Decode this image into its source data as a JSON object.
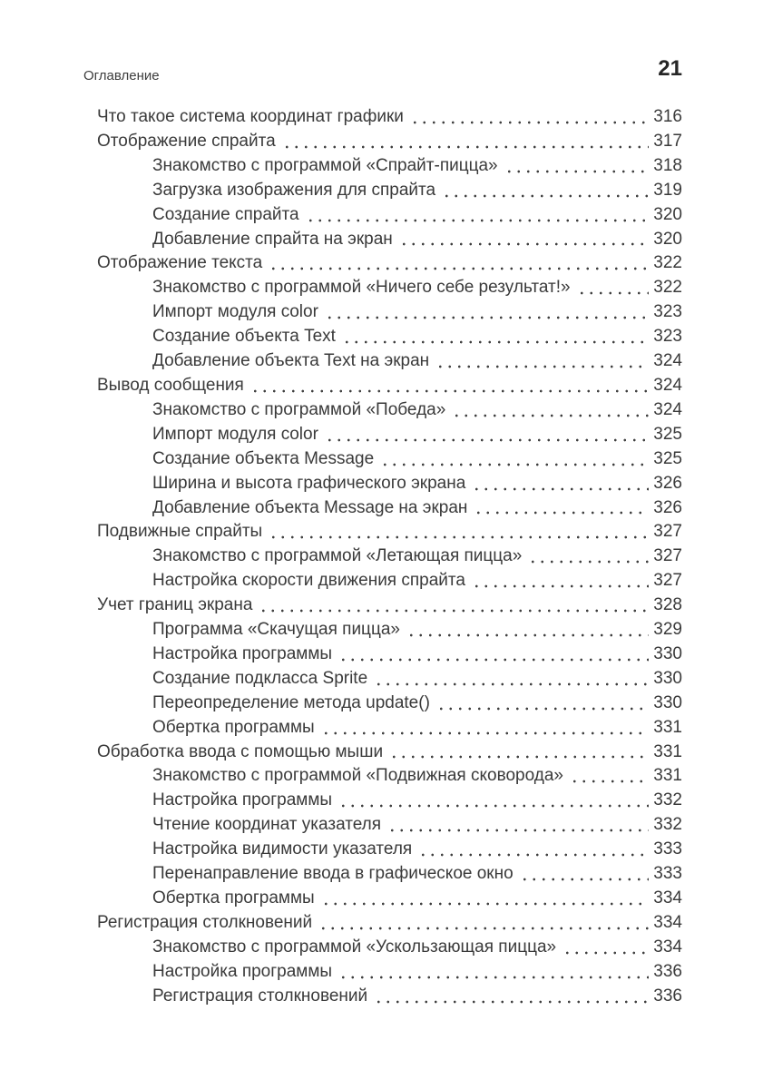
{
  "colors": {
    "page_background": "#ffffff",
    "text": "#3a3a3a"
  },
  "running_head": {
    "label": "Оглавление",
    "page_number": "21"
  },
  "toc": {
    "entries": [
      {
        "level": 1,
        "title": "Что такое система координат графики",
        "page": "316"
      },
      {
        "level": 1,
        "title": "Отображение спрайта",
        "page": "317"
      },
      {
        "level": 2,
        "title": "Знакомство с программой «Спрайт-пицца»",
        "page": "318"
      },
      {
        "level": 2,
        "title": "Загрузка изображения для спрайта",
        "page": "319"
      },
      {
        "level": 2,
        "title": "Создание спрайта",
        "page": "320"
      },
      {
        "level": 2,
        "title": "Добавление спрайта на экран",
        "page": "320"
      },
      {
        "level": 1,
        "title": "Отображение текста",
        "page": "322"
      },
      {
        "level": 2,
        "title": "Знакомство с программой «Ничего себе результат!»",
        "page": "322"
      },
      {
        "level": 2,
        "title": "Импорт модуля color",
        "page": "323"
      },
      {
        "level": 2,
        "title": "Создание объекта Text",
        "page": "323"
      },
      {
        "level": 2,
        "title": "Добавление объекта Text на экран",
        "page": "324"
      },
      {
        "level": 1,
        "title": "Вывод сообщения",
        "page": "324"
      },
      {
        "level": 2,
        "title": "Знакомство с программой «Победа»",
        "page": "324"
      },
      {
        "level": 2,
        "title": "Импорт модуля color",
        "page": "325"
      },
      {
        "level": 2,
        "title": "Создание объекта Message",
        "page": "325"
      },
      {
        "level": 2,
        "title": "Ширина и высота графического экрана",
        "page": "326"
      },
      {
        "level": 2,
        "title": "Добавление объекта Message на экран",
        "page": "326"
      },
      {
        "level": 1,
        "title": "Подвижные спрайты",
        "page": "327"
      },
      {
        "level": 2,
        "title": "Знакомство с программой «Летающая пицца»",
        "page": "327"
      },
      {
        "level": 2,
        "title": "Настройка скорости движения спрайта",
        "page": "327"
      },
      {
        "level": 1,
        "title": "Учет границ экрана",
        "page": "328"
      },
      {
        "level": 2,
        "title": "Программа «Скачущая пицца»",
        "page": "329"
      },
      {
        "level": 2,
        "title": "Настройка программы",
        "page": "330"
      },
      {
        "level": 2,
        "title": "Создание подкласса Sprite",
        "page": "330"
      },
      {
        "level": 2,
        "title": "Переопределение метода update()",
        "page": "330"
      },
      {
        "level": 2,
        "title": "Обертка программы",
        "page": "331"
      },
      {
        "level": 1,
        "title": "Обработка ввода с помощью мыши",
        "page": "331"
      },
      {
        "level": 2,
        "title": "Знакомство с программой «Подвижная сковорода»",
        "page": "331"
      },
      {
        "level": 2,
        "title": "Настройка программы",
        "page": "332"
      },
      {
        "level": 2,
        "title": "Чтение координат указателя",
        "page": "332"
      },
      {
        "level": 2,
        "title": "Настройка видимости указателя",
        "page": "333"
      },
      {
        "level": 2,
        "title": "Перенаправление ввода в графическое окно",
        "page": "333"
      },
      {
        "level": 2,
        "title": "Обертка программы",
        "page": "334"
      },
      {
        "level": 1,
        "title": "Регистрация столкновений",
        "page": "334"
      },
      {
        "level": 2,
        "title": "Знакомство с программой «Ускользающая пицца»",
        "page": "334"
      },
      {
        "level": 2,
        "title": "Настройка программы",
        "page": "336"
      },
      {
        "level": 2,
        "title": "Регистрация столкновений",
        "page": "336"
      }
    ]
  }
}
